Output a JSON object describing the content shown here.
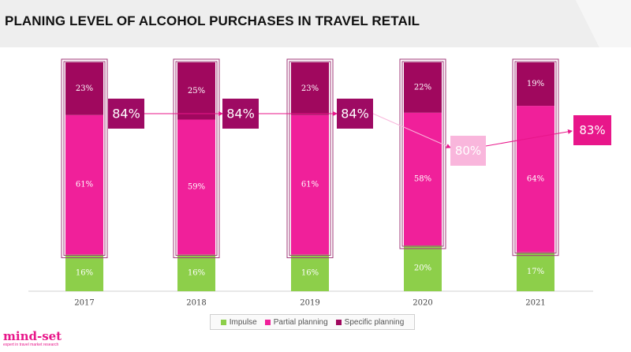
{
  "title": "PLANING LEVEL OF ALCOHOL PURCHASES IN TRAVEL RETAIL",
  "logo": {
    "name": "mind-set",
    "tagline": "expert in travel market research"
  },
  "colors": {
    "impulse": "#8dcf4a",
    "partial_planning": "#f0209a",
    "specific_planning": "#a0085e",
    "total_box": "#9e0a63",
    "total_box_2020": "#f9b6dc",
    "total_box_2021": "#e8168a",
    "outline": "#a0387a"
  },
  "chart_data": {
    "type": "bar",
    "stacked": true,
    "categories": [
      "2017",
      "2018",
      "2019",
      "2020",
      "2021"
    ],
    "series": [
      {
        "name": "Impulse",
        "values": [
          16,
          16,
          16,
          20,
          17
        ],
        "labels": [
          "16%",
          "16%",
          "16%",
          "20%",
          "17%"
        ]
      },
      {
        "name": "Partial planning",
        "values": [
          61,
          59,
          61,
          58,
          64
        ],
        "labels": [
          "61%",
          "59%",
          "61%",
          "58%",
          "64%"
        ]
      },
      {
        "name": "Specific planning",
        "values": [
          23,
          25,
          23,
          22,
          19
        ],
        "labels": [
          "23%",
          "25%",
          "23%",
          "22%",
          "19%"
        ]
      }
    ],
    "totals": {
      "description_values": [
        84,
        84,
        84,
        80,
        83
      ],
      "labels": [
        "84%",
        "84%",
        "84%",
        "80%",
        "83%"
      ]
    },
    "ylim": [
      0,
      100
    ],
    "legend_position": "bottom",
    "grid": false
  }
}
